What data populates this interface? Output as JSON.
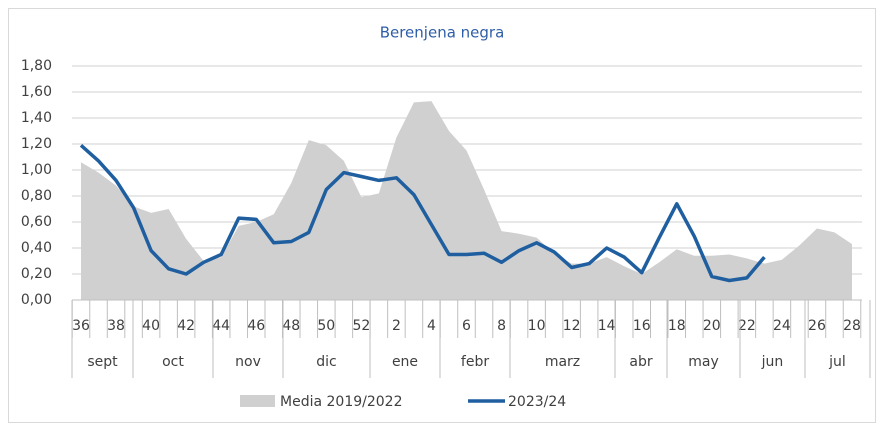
{
  "chart_data": {
    "type": "line",
    "title": "Berenjena negra",
    "categories": [
      36,
      null,
      38,
      null,
      40,
      null,
      42,
      null,
      44,
      null,
      46,
      null,
      48,
      null,
      50,
      null,
      52,
      null,
      2,
      null,
      4,
      null,
      6,
      null,
      8,
      null,
      10,
      null,
      12,
      null,
      14,
      null,
      16,
      null,
      18,
      null,
      20,
      null,
      22,
      null,
      24,
      null,
      26,
      null,
      28
    ],
    "months": [
      "sept",
      "oct",
      "nov",
      "dic",
      "ene",
      "febr",
      "marz",
      "abr",
      "may",
      "jun",
      "jul"
    ],
    "series": [
      {
        "name": "Media 2019/2022",
        "kind": "area",
        "color": "#d0d0d0",
        "values": [
          1.06,
          0.98,
          0.88,
          0.72,
          0.67,
          0.7,
          0.47,
          0.3,
          0.33,
          0.57,
          0.6,
          0.66,
          0.9,
          1.23,
          1.19,
          1.07,
          0.79,
          0.82,
          1.25,
          1.52,
          1.53,
          1.3,
          1.15,
          0.85,
          0.53,
          0.51,
          0.48,
          0.36,
          0.28,
          0.28,
          0.33,
          0.26,
          0.2,
          0.29,
          0.39,
          0.34,
          0.34,
          0.35,
          0.32,
          0.28,
          0.31,
          0.42,
          0.55,
          0.52,
          0.43
        ]
      },
      {
        "name": "2023/24",
        "kind": "line",
        "color": "#1f5fa0",
        "values": [
          1.19,
          1.07,
          0.92,
          0.71,
          0.38,
          0.24,
          0.2,
          0.29,
          0.35,
          0.63,
          0.62,
          0.44,
          0.45,
          0.52,
          0.85,
          0.98,
          0.95,
          0.92,
          0.94,
          0.81,
          0.58,
          0.35,
          0.35,
          0.36,
          0.29,
          0.38,
          0.44,
          0.37,
          0.25,
          0.28,
          0.4,
          0.33,
          0.21,
          0.48,
          0.74,
          0.49,
          0.18,
          0.15,
          0.17,
          0.33,
          null,
          null,
          null,
          null,
          null
        ]
      }
    ],
    "ylim": [
      0,
      1.8
    ],
    "yticks": [
      {
        "value": 0,
        "label": "0,00"
      },
      {
        "value": 0.2,
        "label": "0,20"
      },
      {
        "value": 0.4,
        "label": "0,40"
      },
      {
        "value": 0.6,
        "label": "0,60"
      },
      {
        "value": 0.8,
        "label": "0,80"
      },
      {
        "value": 1.0,
        "label": "1,00"
      },
      {
        "value": 1.2,
        "label": "1,20"
      },
      {
        "value": 1.4,
        "label": "1,40"
      },
      {
        "value": 1.6,
        "label": "1,60"
      },
      {
        "value": 1.8,
        "label": "1,80"
      }
    ],
    "grid": true
  }
}
